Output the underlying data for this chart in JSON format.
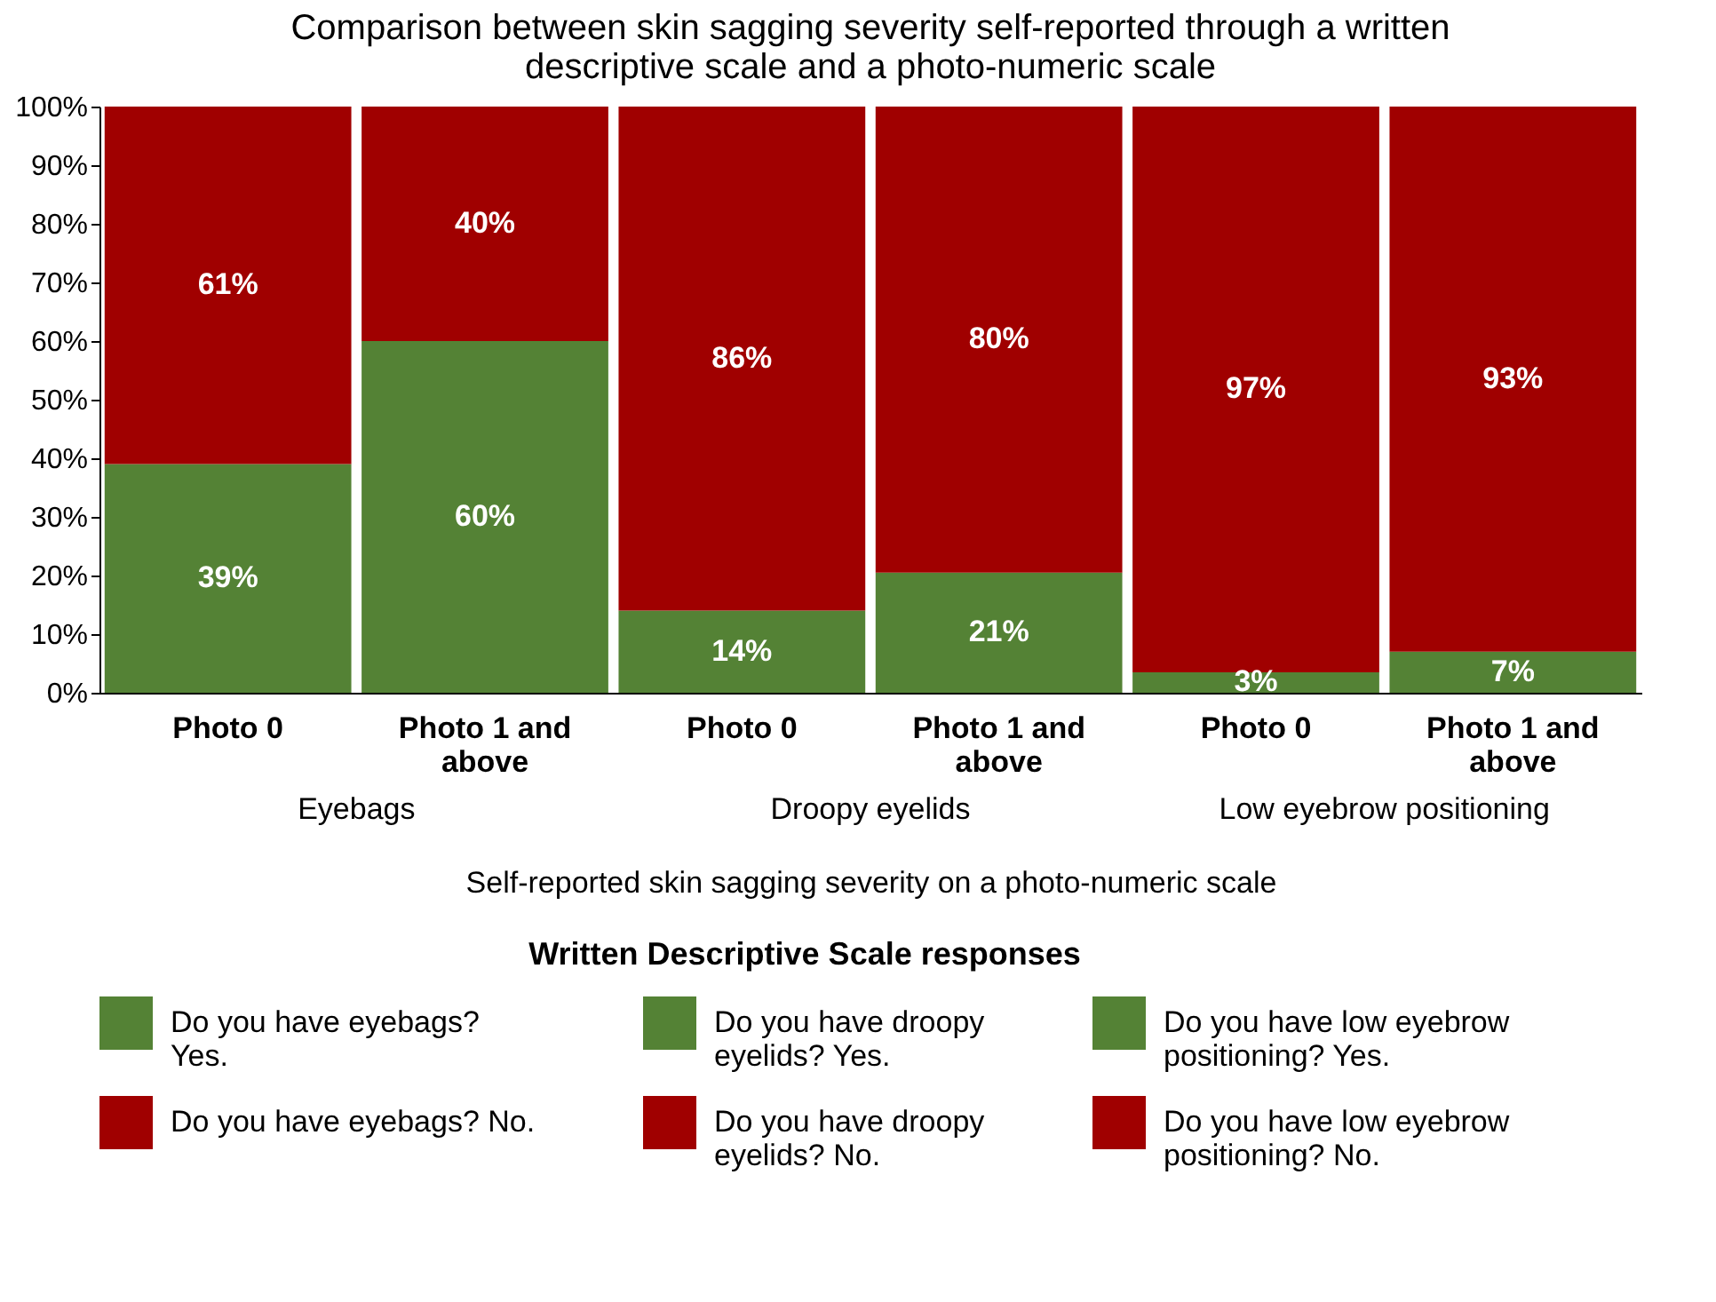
{
  "chart_data": {
    "type": "bar",
    "stacked": true,
    "title": "Comparison between skin sagging severity self-reported through a written descriptive scale and a photo-numeric scale",
    "xlabel": "Self-reported skin sagging severity on a photo-numeric scale",
    "legend_title": "Written Descriptive Scale responses",
    "legend": "bottom",
    "categories": [
      "Photo 0",
      "Photo 1 and above",
      "Photo 0",
      "Photo 1 and above",
      "Photo 0",
      "Photo 1 and above"
    ],
    "annotations": [
      "Eyebags",
      "Droopy eyelids",
      "Low eyebrow positioning"
    ],
    "ylim": [
      0,
      100
    ],
    "yticks": [
      {
        "value": 0,
        "label": "0%"
      },
      {
        "value": 10,
        "label": "10%"
      },
      {
        "value": 20,
        "label": "20%"
      },
      {
        "value": 30,
        "label": "30%"
      },
      {
        "value": 40,
        "label": "40%"
      },
      {
        "value": 50,
        "label": "50%"
      },
      {
        "value": 60,
        "label": "60%"
      },
      {
        "value": 70,
        "label": "70%"
      },
      {
        "value": 80,
        "label": "80%"
      },
      {
        "value": 90,
        "label": "90%"
      },
      {
        "value": 100,
        "label": "100%"
      }
    ],
    "series": [
      {
        "name": "Do you have eyebags? Yes.",
        "color": "#548235",
        "values": [
          39,
          60,
          null,
          null,
          null,
          null
        ],
        "value_labels": [
          "39%",
          "60%",
          null,
          null,
          null,
          null
        ]
      },
      {
        "name": "Do you have droopy eyelids? Yes.",
        "color": "#548235",
        "values": [
          null,
          null,
          14,
          20.5,
          null,
          null
        ],
        "value_labels": [
          null,
          null,
          "14%",
          "21%",
          null,
          null
        ]
      },
      {
        "name": "Do you have low eyebrow positioning? Yes.",
        "color": "#548235",
        "values": [
          null,
          null,
          null,
          null,
          3.5,
          7
        ],
        "value_labels": [
          null,
          null,
          null,
          null,
          "3%",
          "7%"
        ]
      },
      {
        "name": "Do you have eyebags? No.",
        "color": "#a00000",
        "values": [
          61,
          40,
          null,
          null,
          null,
          null
        ],
        "value_labels": [
          "61%",
          "40%",
          null,
          null,
          null,
          null
        ]
      },
      {
        "name": "Do you have droopy eyelids? No.",
        "color": "#a00000",
        "values": [
          null,
          null,
          86,
          79.5,
          null,
          null
        ],
        "value_labels": [
          null,
          null,
          "86%",
          "80%",
          null,
          null
        ]
      },
      {
        "name": "Do you have low eyebrow positioning? No.",
        "color": "#a00000",
        "values": [
          null,
          null,
          null,
          null,
          96.5,
          93
        ],
        "value_labels": [
          null,
          null,
          null,
          null,
          "97%",
          "93%"
        ]
      }
    ]
  }
}
